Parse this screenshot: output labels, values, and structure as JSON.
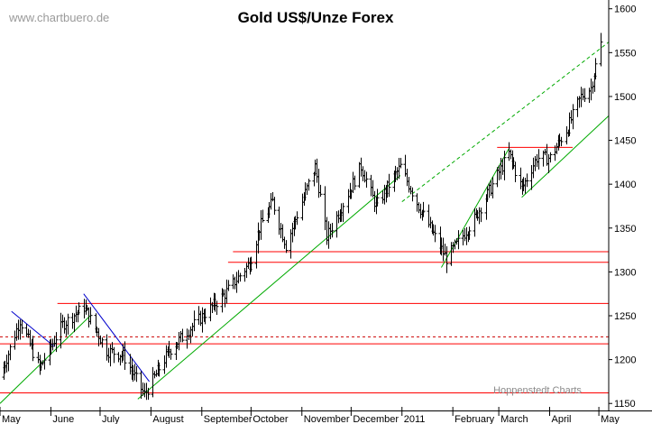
{
  "chart_data": {
    "type": "ohlc",
    "title": "Gold US$/Unze Forex",
    "watermark": "www.chartbuero.de",
    "credit": "Hoppenstedt Charts",
    "ylim": [
      1142,
      1610
    ],
    "y_ticks": [
      1150,
      1200,
      1250,
      1300,
      1350,
      1400,
      1450,
      1500,
      1550,
      1600
    ],
    "grid": false,
    "x_range": [
      "2010-05-01",
      "2011-05-07"
    ],
    "months": [
      {
        "label": "May",
        "date": "2010-05-01"
      },
      {
        "label": "June",
        "date": "2010-06-01"
      },
      {
        "label": "July",
        "date": "2010-07-01"
      },
      {
        "label": "August",
        "date": "2010-08-01"
      },
      {
        "label": "September",
        "date": "2010-09-01"
      },
      {
        "label": "October",
        "date": "2010-10-01"
      },
      {
        "label": "November",
        "date": "2010-11-01"
      },
      {
        "label": "December",
        "date": "2010-12-01"
      },
      {
        "label": "2011",
        "date": "2011-01-01"
      },
      {
        "label": "February",
        "date": "2011-02-01"
      },
      {
        "label": "March",
        "date": "2011-03-01"
      },
      {
        "label": "April",
        "date": "2011-04-01"
      },
      {
        "label": "May",
        "date": "2011-05-01"
      }
    ],
    "key_prices": [
      {
        "date": "2010-05-01",
        "close": 1180
      },
      {
        "date": "2010-05-13",
        "close": 1245
      },
      {
        "date": "2010-05-25",
        "close": 1190
      },
      {
        "date": "2010-06-08",
        "close": 1240
      },
      {
        "date": "2010-06-21",
        "close": 1260
      },
      {
        "date": "2010-07-05",
        "close": 1210
      },
      {
        "date": "2010-07-15",
        "close": 1205
      },
      {
        "date": "2010-07-28",
        "close": 1160
      },
      {
        "date": "2010-08-12",
        "close": 1210
      },
      {
        "date": "2010-08-27",
        "close": 1240
      },
      {
        "date": "2010-09-15",
        "close": 1275
      },
      {
        "date": "2010-09-30",
        "close": 1310
      },
      {
        "date": "2010-10-06",
        "close": 1350
      },
      {
        "date": "2010-10-14",
        "close": 1380
      },
      {
        "date": "2010-10-22",
        "close": 1330
      },
      {
        "date": "2010-11-09",
        "close": 1420
      },
      {
        "date": "2010-11-16",
        "close": 1340
      },
      {
        "date": "2010-12-07",
        "close": 1420
      },
      {
        "date": "2010-12-16",
        "close": 1375
      },
      {
        "date": "2010-12-31",
        "close": 1420
      },
      {
        "date": "2011-01-11",
        "close": 1375
      },
      {
        "date": "2011-01-28",
        "close": 1315
      },
      {
        "date": "2011-02-14",
        "close": 1360
      },
      {
        "date": "2011-03-07",
        "close": 1435
      },
      {
        "date": "2011-03-15",
        "close": 1395
      },
      {
        "date": "2011-03-24",
        "close": 1430
      },
      {
        "date": "2011-04-01",
        "close": 1430
      },
      {
        "date": "2011-04-12",
        "close": 1465
      },
      {
        "date": "2011-04-20",
        "close": 1500
      },
      {
        "date": "2011-04-26",
        "close": 1510
      },
      {
        "date": "2011-05-02",
        "close": 1560
      }
    ],
    "horizontal_lines": [
      {
        "price": 1162,
        "from": "2010-05-01",
        "to": "2011-05-07",
        "color": "#ff0000",
        "dashed": false
      },
      {
        "price": 1218,
        "from": "2010-05-01",
        "to": "2011-05-07",
        "color": "#ff0000",
        "dashed": false
      },
      {
        "price": 1226,
        "from": "2010-05-01",
        "to": "2011-05-07",
        "color": "#cc0000",
        "dashed": true
      },
      {
        "price": 1264,
        "from": "2010-06-05",
        "to": "2011-05-07",
        "color": "#ff0000",
        "dashed": false
      },
      {
        "price": 1311,
        "from": "2010-09-17",
        "to": "2011-05-07",
        "color": "#ff0000",
        "dashed": false
      },
      {
        "price": 1323,
        "from": "2010-09-20",
        "to": "2011-05-07",
        "color": "#ff0000",
        "dashed": false
      },
      {
        "price": 1442,
        "from": "2011-02-28",
        "to": "2011-04-15",
        "color": "#ff0000",
        "dashed": false
      }
    ],
    "trend_lines": [
      {
        "from": [
          "2010-05-01",
          1150
        ],
        "to": [
          "2010-06-25",
          1250
        ],
        "color": "#00aa00",
        "dashed": false
      },
      {
        "from": [
          "2010-07-24",
          1155
        ],
        "to": [
          "2010-12-31",
          1410
        ],
        "color": "#00aa00",
        "dashed": false
      },
      {
        "from": [
          "2011-01-25",
          1305
        ],
        "to": [
          "2011-03-07",
          1440
        ],
        "color": "#00aa00",
        "dashed": false
      },
      {
        "from": [
          "2011-03-15",
          1385
        ],
        "to": [
          "2011-05-07",
          1478
        ],
        "color": "#00aa00",
        "dashed": false
      },
      {
        "from": [
          "2011-01-01",
          1380
        ],
        "to": [
          "2011-05-07",
          1562
        ],
        "color": "#00aa00",
        "dashed": true
      },
      {
        "from": [
          "2010-05-08",
          1255
        ],
        "to": [
          "2010-06-03",
          1215
        ],
        "color": "#0000cc",
        "dashed": false
      },
      {
        "from": [
          "2010-06-21",
          1275
        ],
        "to": [
          "2010-07-31",
          1175
        ],
        "color": "#0000cc",
        "dashed": false
      }
    ]
  }
}
